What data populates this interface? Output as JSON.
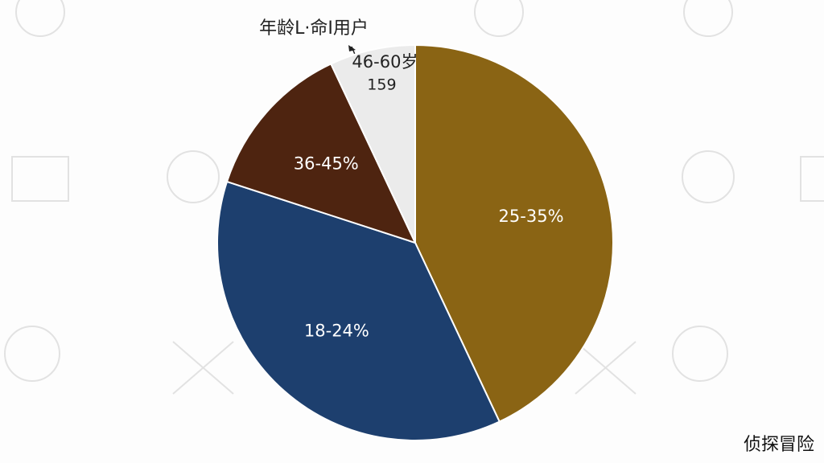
{
  "chart_data": {
    "type": "pie",
    "title": "年龄L·命I用户",
    "categories": [
      "25-35%",
      "18-24%",
      "36-45%",
      "46-60岁"
    ],
    "values": [
      43,
      37,
      13,
      7
    ],
    "colors": [
      "#8a6414",
      "#1d3f6e",
      "#4e2410",
      "#ebebeb"
    ],
    "annotation": "159",
    "watermark": "侦探冒险"
  }
}
